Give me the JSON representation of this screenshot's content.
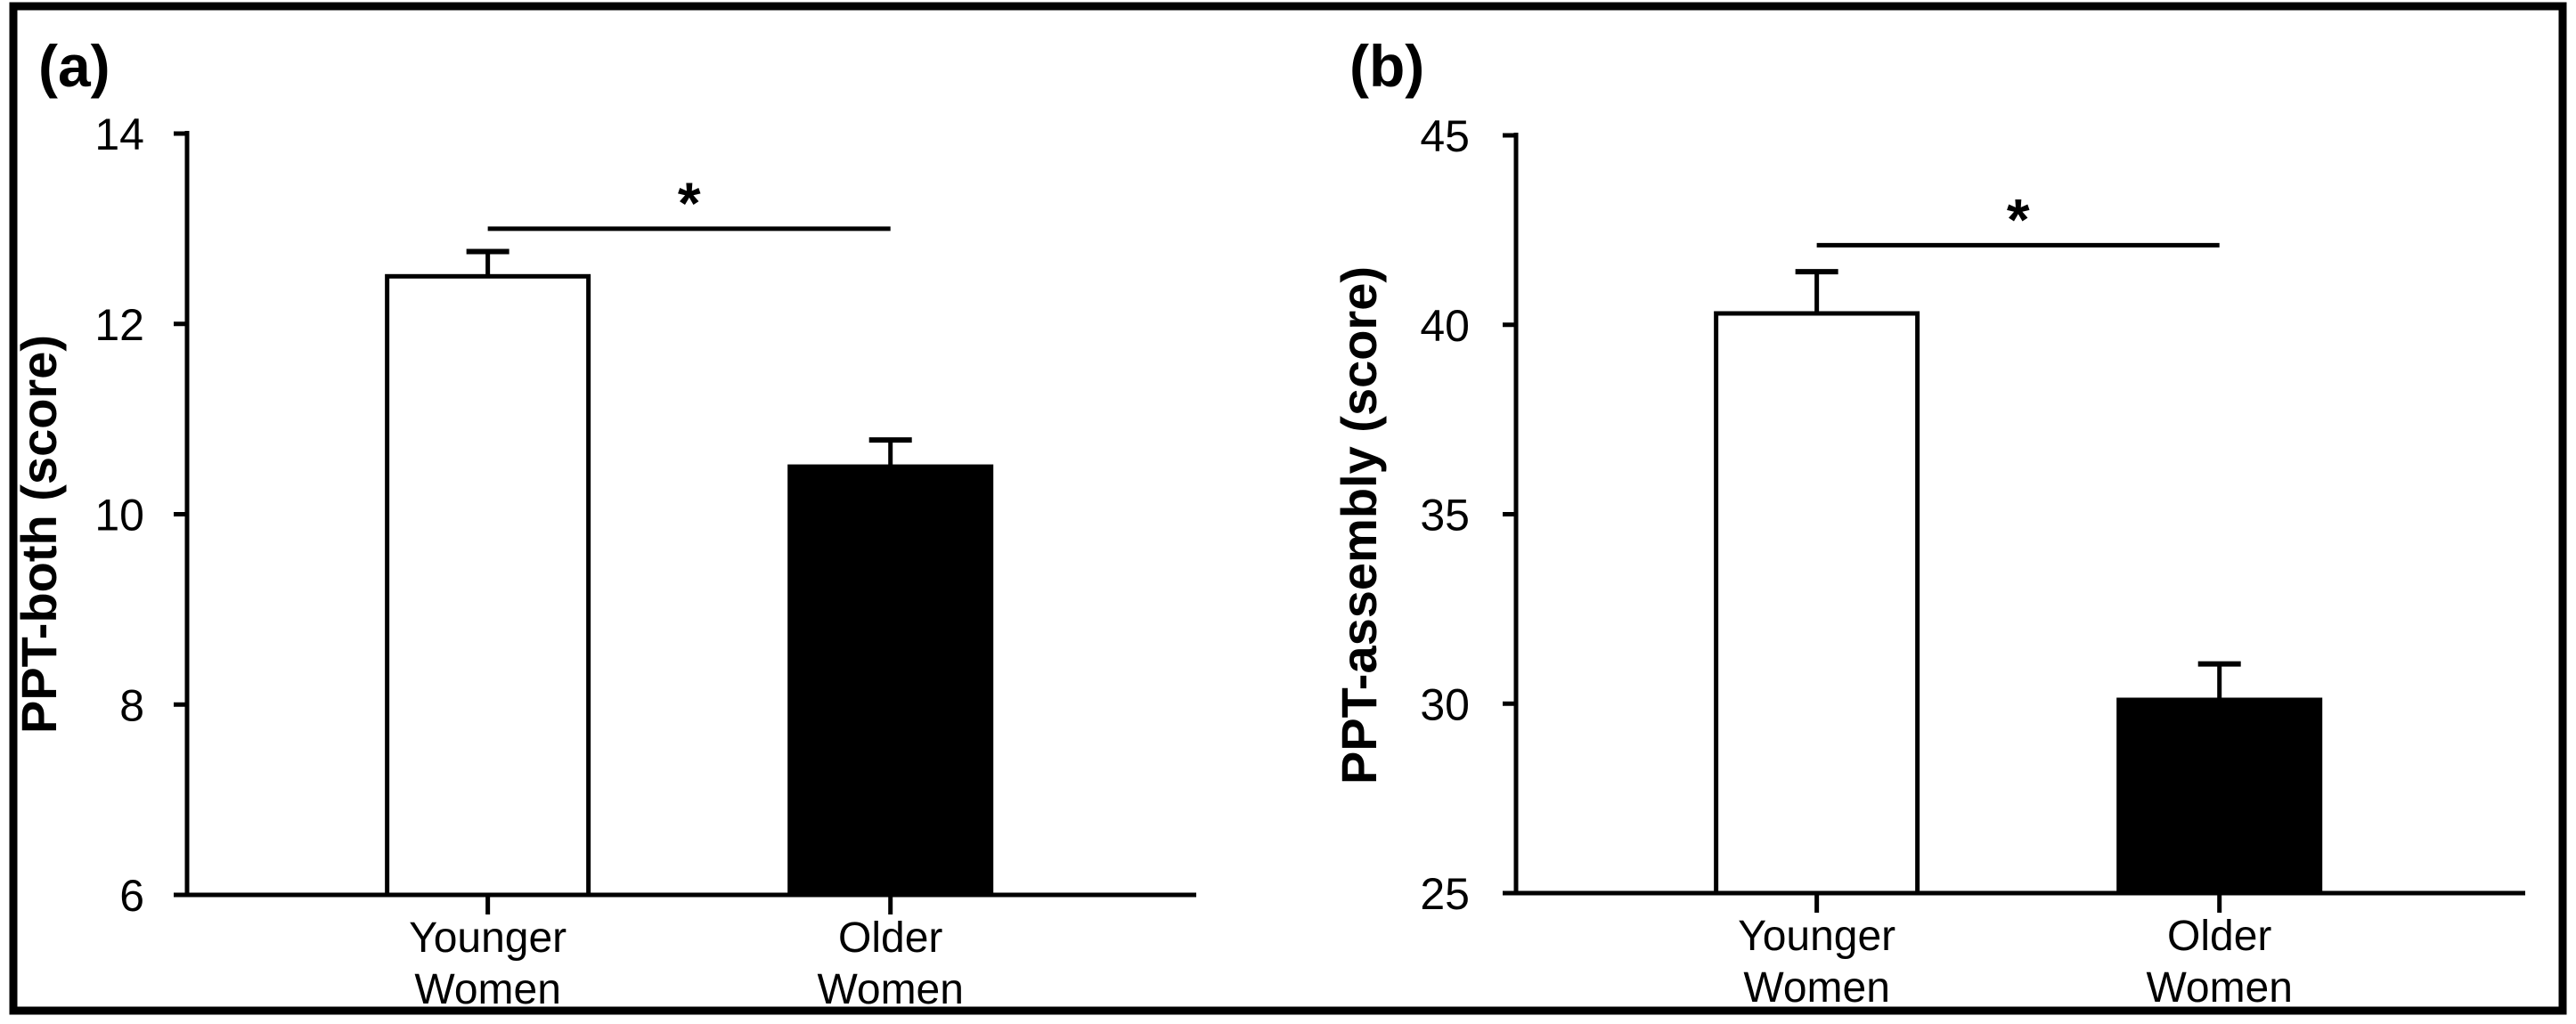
{
  "figure": {
    "background": "#ffffff",
    "line_color": "#000000"
  },
  "chart_data": [
    {
      "type": "bar",
      "panel_label": "(a)",
      "ylabel": "PPT-both (score)",
      "ylim": [
        6,
        14
      ],
      "yticks": [
        14,
        12,
        10,
        8,
        6
      ],
      "categories": [
        [
          "Younger",
          "Women"
        ],
        [
          "Older",
          "Women"
        ]
      ],
      "series": [
        {
          "name": "PPT-both",
          "values": [
            12.5,
            10.5
          ],
          "errors_up": [
            0.26,
            0.28
          ]
        }
      ],
      "bar_fills": [
        "#ffffff",
        "#000000"
      ],
      "grid": "off",
      "legend": "none",
      "significance": {
        "label": "*",
        "y_value": 13.0,
        "between": [
          0,
          1
        ]
      }
    },
    {
      "type": "bar",
      "panel_label": "(b)",
      "ylabel": "PPT-assembly (score)",
      "ylim": [
        25,
        45
      ],
      "yticks": [
        45,
        40,
        35,
        30,
        25
      ],
      "categories": [
        [
          "Younger",
          "Women"
        ],
        [
          "Older",
          "Women"
        ]
      ],
      "series": [
        {
          "name": "PPT-assembly",
          "values": [
            40.3,
            30.1
          ],
          "errors_up": [
            1.1,
            0.95
          ]
        }
      ],
      "bar_fills": [
        "#ffffff",
        "#000000"
      ],
      "grid": "off",
      "legend": "none",
      "significance": {
        "label": "*",
        "y_value": 42.1,
        "between": [
          0,
          1
        ]
      }
    }
  ]
}
